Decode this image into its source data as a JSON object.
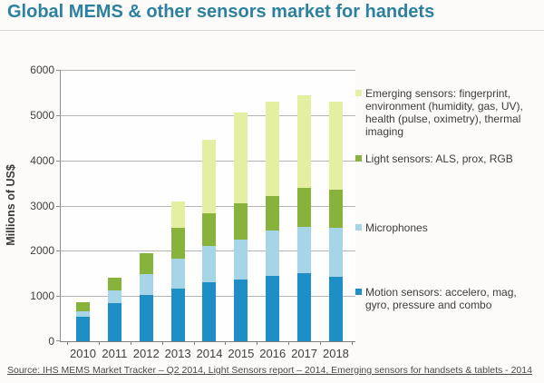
{
  "header": {
    "title": "Global MEMS & other sensors market for handets"
  },
  "source_note": "Source: IHS MEMS Market Tracker – Q2 2014, Light Sensors report – 2014, Emerging sensors for handsets & tablets - 2014",
  "colors": {
    "title_text": "#2c80a1",
    "axis": "#7f7f7f",
    "gridline": "#b5b5b5",
    "motion_blue": "#1d8ec6",
    "microphone_light_blue": "#a7d5e8",
    "light_sensor_green": "#87b23c",
    "emerging_pale_green": "#e5efa1"
  },
  "chart_data": {
    "type": "bar",
    "stacked": true,
    "title": "Global MEMS & other sensors market for handets",
    "xlabel": "",
    "ylabel": "Millions of US$",
    "ylim": [
      0,
      6000
    ],
    "ytick_step": 1000,
    "grid": true,
    "legend_position": "right",
    "categories": [
      "2010",
      "2011",
      "2012",
      "2013",
      "2014",
      "2015",
      "2016",
      "2017",
      "2018"
    ],
    "series": [
      {
        "name": "motion-sensors",
        "legend_label": "Motion sensors: accelero, mag, gyro, pressure and combo",
        "color": "#1d8ec6",
        "values": [
          550,
          850,
          1020,
          1170,
          1300,
          1370,
          1440,
          1500,
          1430
        ]
      },
      {
        "name": "microphones",
        "legend_label": "Microphones",
        "color": "#a7d5e8",
        "values": [
          110,
          270,
          460,
          650,
          800,
          880,
          1010,
          1030,
          1080
        ]
      },
      {
        "name": "light-sensors",
        "legend_label": "Light sensors: ALS, prox, RGB",
        "color": "#87b23c",
        "values": [
          200,
          280,
          470,
          680,
          730,
          800,
          770,
          860,
          840
        ]
      },
      {
        "name": "emerging-sensors",
        "legend_label": "Emerging sensors: fingerprint, environment (humidity, gas, UV), health (pulse, oximetry), thermal imaging",
        "color": "#e5efa1",
        "values": [
          0,
          0,
          0,
          600,
          1620,
          2000,
          2080,
          2050,
          1950
        ]
      }
    ],
    "totals": [
      860,
      1400,
      1950,
      3100,
      4450,
      5050,
      5300,
      5440,
      5300
    ]
  }
}
